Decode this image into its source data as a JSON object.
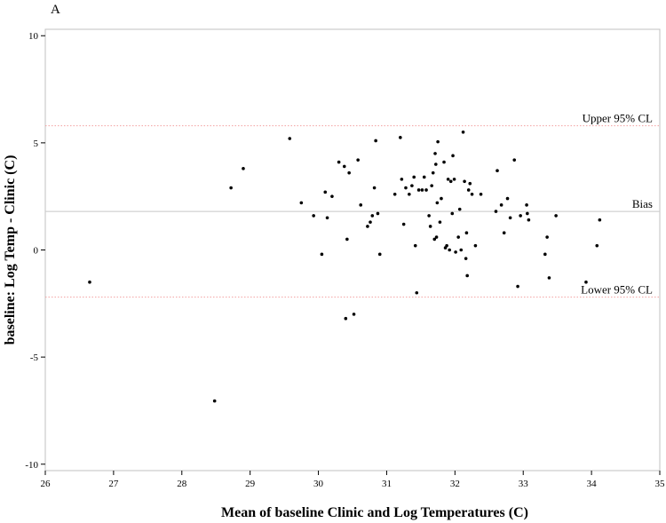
{
  "chart_data": {
    "type": "scatter",
    "panel_label": "A",
    "xlabel": "Mean of baseline Clinic and Log Temperatures (C)",
    "ylabel": "baseline: Log Temp - Clinic (C)",
    "xlim": [
      26,
      35
    ],
    "ylim": [
      -10.3,
      10.3
    ],
    "xticks": [
      26,
      27,
      28,
      29,
      30,
      31,
      32,
      33,
      34,
      35
    ],
    "yticks": [
      -10,
      -5,
      0,
      5,
      10
    ],
    "grid": false,
    "legend": "none",
    "reference_lines": [
      {
        "label": "Upper 95% CL",
        "y": 5.8,
        "style": "dotted",
        "color": "#f2a0a0"
      },
      {
        "label": "Bias",
        "y": 1.8,
        "style": "solid",
        "color": "#c8c8c8"
      },
      {
        "label": "Lower 95% CL",
        "y": -2.2,
        "style": "dotted",
        "color": "#f2a0a0"
      }
    ],
    "points": [
      [
        26.65,
        -1.5
      ],
      [
        28.48,
        -7.05
      ],
      [
        28.72,
        2.9
      ],
      [
        28.9,
        3.8
      ],
      [
        29.58,
        5.2
      ],
      [
        29.75,
        2.2
      ],
      [
        29.93,
        1.6
      ],
      [
        30.05,
        -0.2
      ],
      [
        30.1,
        2.7
      ],
      [
        30.13,
        1.5
      ],
      [
        30.2,
        2.5
      ],
      [
        30.3,
        4.1
      ],
      [
        30.38,
        3.9
      ],
      [
        30.4,
        -3.2
      ],
      [
        30.42,
        0.5
      ],
      [
        30.45,
        3.6
      ],
      [
        30.52,
        -3.0
      ],
      [
        30.58,
        4.2
      ],
      [
        30.62,
        2.1
      ],
      [
        30.72,
        1.1
      ],
      [
        30.76,
        1.3
      ],
      [
        30.79,
        1.6
      ],
      [
        30.82,
        2.9
      ],
      [
        30.84,
        5.1
      ],
      [
        30.87,
        1.7
      ],
      [
        30.9,
        -0.2
      ],
      [
        31.12,
        2.6
      ],
      [
        31.2,
        5.25
      ],
      [
        31.22,
        3.3
      ],
      [
        31.25,
        1.2
      ],
      [
        31.28,
        2.9
      ],
      [
        31.33,
        2.6
      ],
      [
        31.37,
        3.0
      ],
      [
        31.4,
        3.4
      ],
      [
        31.42,
        0.2
      ],
      [
        31.44,
        -2.0
      ],
      [
        31.47,
        2.8
      ],
      [
        31.52,
        2.8
      ],
      [
        31.55,
        3.4
      ],
      [
        31.58,
        2.8
      ],
      [
        31.62,
        1.6
      ],
      [
        31.64,
        1.1
      ],
      [
        31.66,
        3.0
      ],
      [
        31.68,
        3.6
      ],
      [
        31.7,
        0.5
      ],
      [
        31.71,
        4.5
      ],
      [
        31.72,
        4.0
      ],
      [
        31.73,
        0.6
      ],
      [
        31.74,
        2.2
      ],
      [
        31.75,
        5.05
      ],
      [
        31.78,
        1.3
      ],
      [
        31.8,
        2.4
      ],
      [
        31.84,
        4.1
      ],
      [
        31.86,
        0.1
      ],
      [
        31.88,
        0.2
      ],
      [
        31.9,
        3.3
      ],
      [
        31.92,
        0.0
      ],
      [
        31.94,
        3.2
      ],
      [
        31.96,
        1.7
      ],
      [
        31.97,
        4.4
      ],
      [
        31.99,
        3.3
      ],
      [
        32.01,
        -0.1
      ],
      [
        32.05,
        0.6
      ],
      [
        32.07,
        1.9
      ],
      [
        32.09,
        0.0
      ],
      [
        32.12,
        5.5
      ],
      [
        32.14,
        3.2
      ],
      [
        32.16,
        -0.4
      ],
      [
        32.17,
        0.8
      ],
      [
        32.18,
        -1.2
      ],
      [
        32.2,
        2.8
      ],
      [
        32.22,
        3.1
      ],
      [
        32.25,
        2.6
      ],
      [
        32.3,
        0.2
      ],
      [
        32.38,
        2.6
      ],
      [
        32.6,
        1.8
      ],
      [
        32.62,
        3.7
      ],
      [
        32.68,
        2.1
      ],
      [
        32.72,
        0.8
      ],
      [
        32.77,
        2.4
      ],
      [
        32.81,
        1.5
      ],
      [
        32.87,
        4.2
      ],
      [
        32.92,
        -1.7
      ],
      [
        32.96,
        1.6
      ],
      [
        33.05,
        2.1
      ],
      [
        33.06,
        1.7
      ],
      [
        33.08,
        1.4
      ],
      [
        33.32,
        -0.2
      ],
      [
        33.35,
        0.6
      ],
      [
        33.38,
        -1.3
      ],
      [
        33.48,
        1.6
      ],
      [
        33.92,
        -1.5
      ],
      [
        34.08,
        0.2
      ],
      [
        34.12,
        1.4
      ]
    ]
  }
}
